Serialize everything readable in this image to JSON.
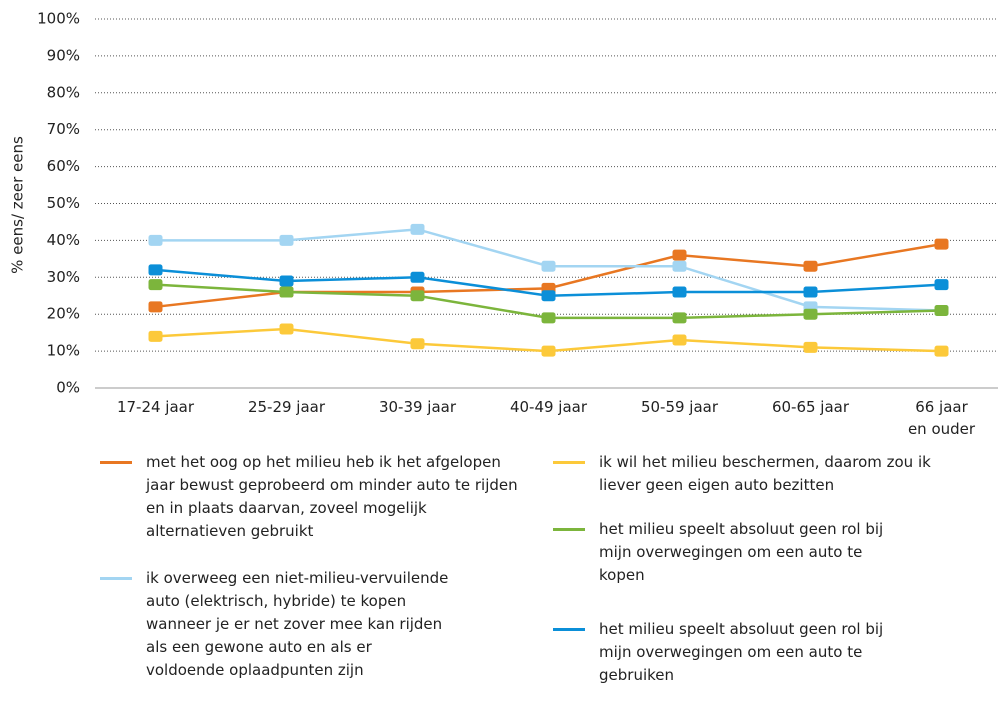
{
  "chart_data": {
    "type": "line",
    "y_axis_label": "% eens/ zeer eens",
    "categories": [
      "17-24 jaar",
      "25-29 jaar",
      "30-39 jaar",
      "40-49 jaar",
      "50-59 jaar",
      "60-65 jaar",
      "66 jaar\nen ouder"
    ],
    "ylim": [
      0,
      100
    ],
    "yticks": [
      {
        "value": 0,
        "label": "0%"
      },
      {
        "value": 10,
        "label": "10%"
      },
      {
        "value": 20,
        "label": "20%"
      },
      {
        "value": 30,
        "label": "30%"
      },
      {
        "value": 40,
        "label": "40%"
      },
      {
        "value": 50,
        "label": "50%"
      },
      {
        "value": 60,
        "label": "60%"
      },
      {
        "value": 70,
        "label": "70%"
      },
      {
        "value": 80,
        "label": "80%"
      },
      {
        "value": 90,
        "label": "90%"
      },
      {
        "value": 100,
        "label": "100%"
      }
    ],
    "grid": true,
    "series": [
      {
        "name": "met het oog op het milieu heb ik het afgelopen jaar bewust geprobeerd om minder auto te rijden en in plaats daarvan, zoveel mogelijk alternatieven gebruikt",
        "color": "#e87722",
        "values": [
          22,
          26,
          26,
          27,
          36,
          33,
          39
        ]
      },
      {
        "name": "ik overweeg een niet-milieu-vervuilende auto (elektrisch, hybride) te kopen wanneer je er net zover mee kan rijden als een gewone auto en als er voldoende oplaadpunten zijn",
        "color": "#a3d5f2",
        "values": [
          40,
          40,
          43,
          33,
          33,
          22,
          21
        ]
      },
      {
        "name": "ik wil het milieu beschermen, daarom zou ik liever geen eigen auto bezitten",
        "color": "#fcc93a",
        "values": [
          14,
          16,
          12,
          10,
          13,
          11,
          10
        ]
      },
      {
        "name": "het milieu speelt absoluut geen rol bij mijn overwegingen om een auto te kopen",
        "color": "#7cb53c",
        "values": [
          28,
          26,
          25,
          19,
          19,
          20,
          21
        ]
      },
      {
        "name": "het milieu speelt absoluut geen rol bij mijn overwegingen om een auto te gebruiken",
        "color": "#0b8fd8",
        "values": [
          32,
          29,
          30,
          25,
          26,
          26,
          28
        ]
      }
    ]
  }
}
